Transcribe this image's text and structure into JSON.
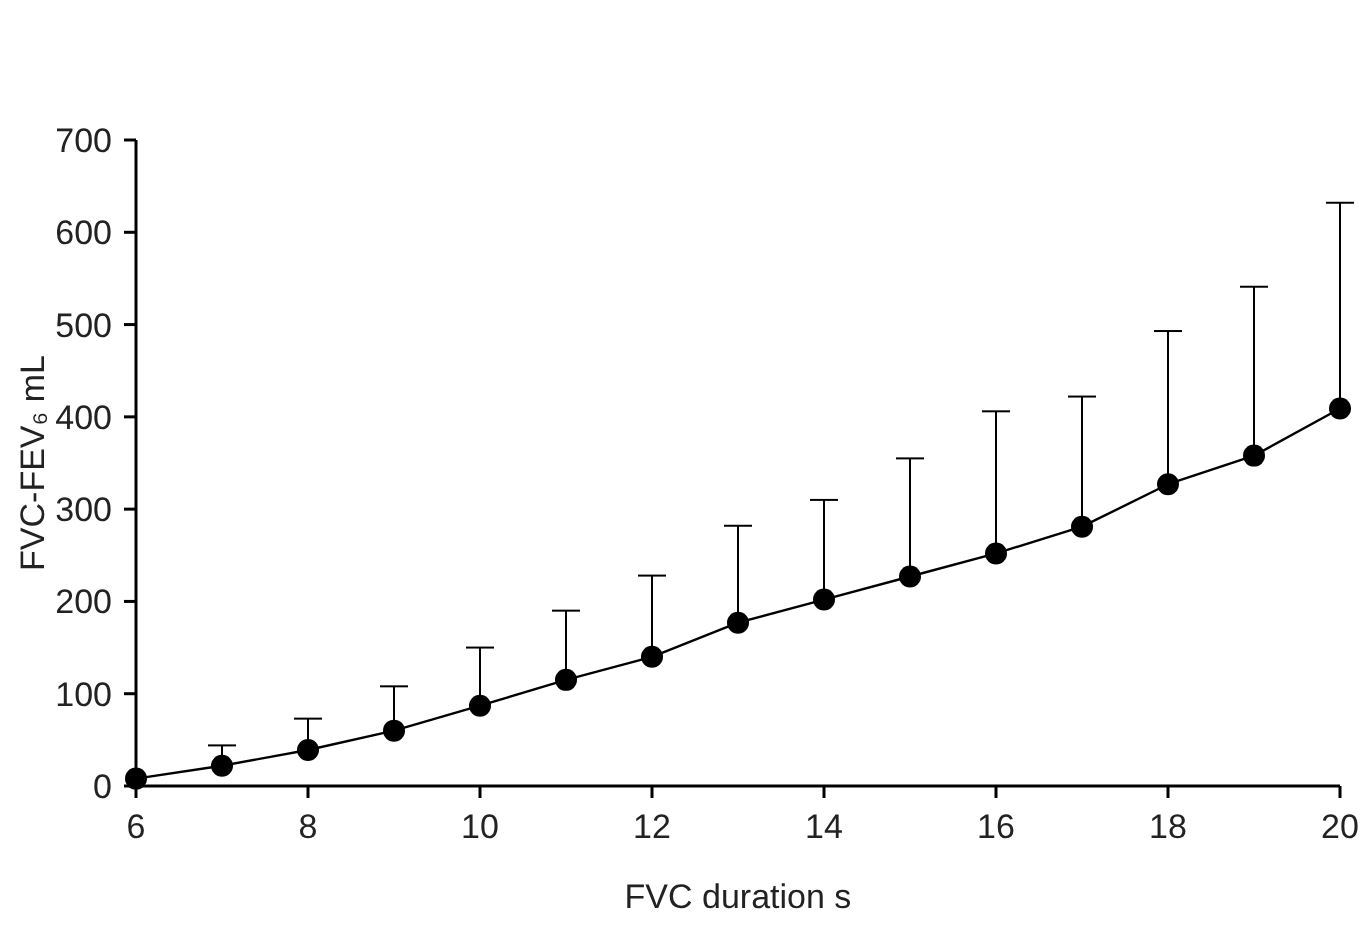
{
  "chart_data": {
    "type": "line",
    "xlabel": "FVC duration s",
    "ylabel": "FVC-FEV₆ mL",
    "x": [
      6,
      7,
      8,
      9,
      10,
      11,
      12,
      13,
      14,
      15,
      16,
      17,
      18,
      19,
      20
    ],
    "series": [
      {
        "color": "#000000",
        "values": [
          8,
          22,
          39,
          60,
          87,
          115,
          140,
          177,
          202,
          227,
          252,
          281,
          327,
          358,
          409
        ],
        "errors": [
          null,
          [
            22,
            44
          ],
          [
            39,
            73
          ],
          [
            60,
            108
          ],
          [
            87,
            150
          ],
          [
            115,
            190
          ],
          [
            140,
            228
          ],
          [
            177,
            282
          ],
          [
            202,
            310
          ],
          [
            227,
            355
          ],
          [
            252,
            406
          ],
          [
            281,
            422
          ],
          [
            327,
            493
          ],
          [
            358,
            541
          ],
          [
            409,
            632
          ]
        ]
      }
    ],
    "xlim": [
      6,
      20
    ],
    "xticks": [
      6,
      8,
      10,
      12,
      14,
      16,
      18,
      20
    ],
    "ylim": [
      0,
      700
    ],
    "yticks": [
      0,
      100,
      200,
      300,
      400,
      500,
      600,
      700
    ],
    "grid": false,
    "marker": "circle",
    "line_style": "solid"
  }
}
